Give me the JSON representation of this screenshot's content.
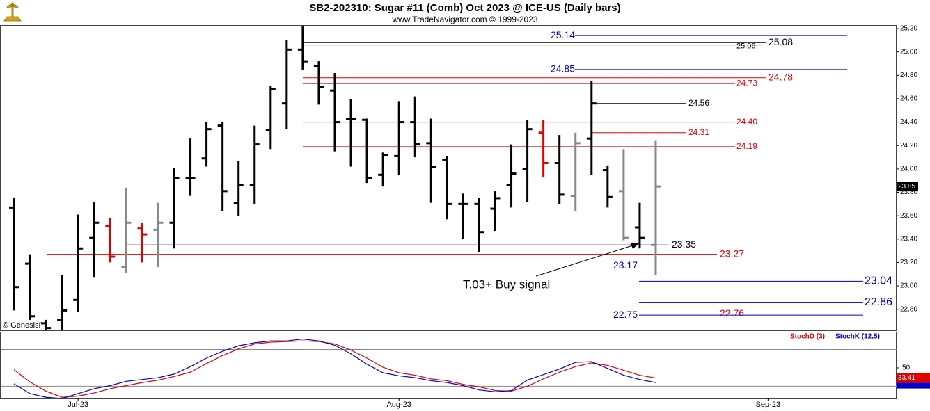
{
  "chart_data": [
    {
      "type": "ohlc",
      "title": "SB2-202310:  Sugar #11 (Comb) Oct 2023 @ ICE-US  (Daily bars)",
      "subtitle": "www.TradeNavigator.com © 1999-2023",
      "watermark": "© GenesisF",
      "categories": [
        null,
        null,
        null,
        null,
        "Jul-23",
        null,
        null,
        null,
        null,
        null,
        null,
        null,
        null,
        null,
        null,
        null,
        null,
        null,
        null,
        null,
        null,
        null,
        null,
        null,
        "Aug-23",
        null,
        null,
        null,
        null,
        null,
        null,
        null,
        null,
        null,
        null,
        null,
        null,
        null,
        null,
        null,
        null,
        null,
        null,
        null,
        null,
        null,
        null,
        "Sep-23",
        null,
        null,
        null,
        null,
        null,
        null,
        null
      ],
      "open": [
        23.67,
        23.19,
        22.68,
        22.71,
        22.88,
        23.41,
        23.51,
        23.16,
        23.49,
        23.48,
        23.54,
        23.92,
        24.09,
        24.37,
        23.71,
        23.86,
        24.33,
        24.56,
        25.02,
        24.88,
        24.67,
        24.43,
        24.42,
        23.95,
        24.11,
        24.4,
        24.22,
        24.08,
        23.7,
        23.7,
        23.66,
        23.86,
        24.0,
        24.31,
        24.05,
        23.77,
        24.26,
        23.99,
        23.81,
        23.5,
        23.35,
        null,
        null,
        null,
        null,
        null,
        null,
        null,
        null,
        null,
        null,
        null,
        null,
        null,
        null
      ],
      "high": [
        23.75,
        23.27,
        22.71,
        23.09,
        23.61,
        23.72,
        23.58,
        23.84,
        23.54,
        23.71,
        24.01,
        24.26,
        24.4,
        24.4,
        24.07,
        24.37,
        24.71,
        25.1,
        25.22,
        24.92,
        24.82,
        24.6,
        24.43,
        24.14,
        24.58,
        24.62,
        24.43,
        24.11,
        23.79,
        23.75,
        23.81,
        24.21,
        24.42,
        24.42,
        24.29,
        24.31,
        24.75,
        24.03,
        24.17,
        23.71,
        24.24,
        null,
        null,
        null,
        null,
        null,
        null,
        null,
        null,
        null,
        null,
        null,
        null,
        null,
        null
      ],
      "low": [
        22.79,
        22.71,
        22.62,
        22.62,
        22.78,
        23.07,
        23.2,
        23.11,
        23.2,
        23.16,
        23.32,
        23.77,
        24.02,
        23.64,
        23.6,
        23.7,
        24.17,
        24.34,
        24.85,
        24.55,
        24.15,
        24.02,
        23.88,
        23.85,
        23.95,
        24.1,
        23.71,
        23.57,
        23.4,
        23.29,
        23.47,
        23.67,
        23.72,
        23.93,
        23.7,
        23.64,
        23.95,
        23.67,
        23.39,
        23.32,
        23.09,
        null,
        null,
        null,
        null,
        null,
        null,
        null,
        null,
        null,
        null,
        null,
        null,
        null,
        null
      ],
      "close": [
        22.99,
        22.74,
        22.64,
        22.79,
        23.32,
        23.54,
        23.25,
        23.54,
        23.44,
        23.54,
        23.92,
        23.92,
        24.34,
        23.81,
        23.86,
        24.21,
        24.68,
        25.02,
        24.92,
        24.7,
        24.4,
        24.43,
        23.92,
        24.12,
        24.4,
        24.21,
        24.02,
        23.7,
        23.7,
        23.46,
        23.75,
        23.96,
        24.34,
        24.05,
        23.78,
        24.22,
        24.56,
        23.76,
        23.41,
        23.41,
        23.85,
        null,
        null,
        null,
        null,
        null,
        null,
        null,
        null,
        null,
        null,
        null,
        null,
        null,
        null
      ],
      "colors": [
        "#000000",
        "#000000",
        "#000000",
        "#000000",
        "#000000",
        "#000000",
        "#e00000",
        "#888888",
        "#e00000",
        "#888888",
        "#000000",
        "#000000",
        "#000000",
        "#000000",
        "#000000",
        "#000000",
        "#000000",
        "#000000",
        "#000000",
        "#000000",
        "#000000",
        "#000000",
        "#000000",
        "#000000",
        "#000000",
        "#000000",
        "#000000",
        "#000000",
        "#000000",
        "#000000",
        "#000000",
        "#000000",
        "#000000",
        "#e00000",
        "#000000",
        "#888888",
        "#000000",
        "#000000",
        "#888888",
        "#000000",
        "#888888",
        null,
        null,
        null,
        null,
        null,
        null,
        null,
        null,
        null,
        null,
        null,
        null,
        null,
        null
      ],
      "ylim": [
        22.62,
        25.23
      ],
      "yticks": [
        {
          "value": 22.8,
          "label": "22.80"
        },
        {
          "value": 23.0,
          "label": "23.00"
        },
        {
          "value": 23.2,
          "label": "23.20"
        },
        {
          "value": 23.4,
          "label": "23.40"
        },
        {
          "value": 23.6,
          "label": "23.60"
        },
        {
          "value": 23.8,
          "label": "23.80"
        },
        {
          "value": 24.0,
          "label": "24.00"
        },
        {
          "value": 24.2,
          "label": "24.20"
        },
        {
          "value": 24.4,
          "label": "24.40"
        },
        {
          "value": 24.6,
          "label": "24.60"
        },
        {
          "value": 24.8,
          "label": "24.80"
        },
        {
          "value": 25.0,
          "label": "25.00"
        },
        {
          "value": 25.2,
          "label": "25.20"
        }
      ],
      "levels": [
        {
          "value": 25.14,
          "label": "25.14",
          "color": "#0000cc"
        },
        {
          "value": 25.08,
          "label": "25.08",
          "color": "#000000"
        },
        {
          "value": 25.06,
          "label": "25.06",
          "color": "#000000"
        },
        {
          "value": 24.85,
          "label": "24.85",
          "color": "#0000cc"
        },
        {
          "value": 24.78,
          "label": "24.78",
          "color": "#e00000"
        },
        {
          "value": 24.73,
          "label": "24.73",
          "color": "#e00000"
        },
        {
          "value": 24.56,
          "label": "24.56",
          "color": "#000000"
        },
        {
          "value": 24.4,
          "label": "24.40",
          "color": "#e00000"
        },
        {
          "value": 24.31,
          "label": "24.31",
          "color": "#e00000"
        },
        {
          "value": 24.19,
          "label": "24.19",
          "color": "#e00000"
        },
        {
          "value": 23.35,
          "label": "23.35",
          "color": "#000000"
        },
        {
          "value": 23.27,
          "label": "23.27",
          "color": "#e00000"
        },
        {
          "value": 23.17,
          "label": "23.17",
          "color": "#0000cc"
        },
        {
          "value": 23.04,
          "label": "23.04",
          "color": "#0000cc"
        },
        {
          "value": 22.86,
          "label": "22.86",
          "color": "#0000cc"
        },
        {
          "value": 22.76,
          "label": "22.76",
          "color": "#e00000"
        },
        {
          "value": 22.75,
          "label": "22.75",
          "color": "#0000cc"
        }
      ],
      "annotation": "T.03+ Buy signal"
    },
    {
      "type": "line",
      "series": [
        {
          "name": "StochD (3)",
          "color": "#e00000",
          "values": [
            47,
            27,
            12,
            2,
            4,
            9,
            16,
            21,
            26,
            30,
            36,
            43,
            57,
            70,
            81,
            89,
            92,
            93,
            94,
            93,
            89,
            79,
            66,
            51,
            42,
            38,
            32,
            29,
            23,
            19,
            13,
            12,
            20,
            32,
            43,
            52,
            58,
            54,
            46,
            38,
            33.41,
            null,
            null,
            null,
            null,
            null,
            null,
            null,
            null,
            null,
            null,
            null,
            null,
            null,
            null
          ]
        },
        {
          "name": "StochK (12,5)",
          "color": "#0000cc",
          "values": [
            24,
            8,
            2,
            0,
            8,
            16,
            21,
            28,
            31,
            34,
            40,
            52,
            66,
            77,
            86,
            91,
            94,
            94,
            97,
            94,
            87,
            73,
            56,
            42,
            37,
            34,
            29,
            26,
            21,
            14,
            11,
            13,
            30,
            39,
            48,
            59,
            60,
            49,
            38,
            31,
            26,
            null,
            null,
            null,
            null,
            null,
            null,
            null,
            null,
            null,
            null,
            null,
            null,
            null,
            null
          ]
        }
      ],
      "ylim": [
        0,
        109
      ],
      "yticks": [
        50
      ],
      "levels": [
        20,
        80
      ]
    }
  ]
}
